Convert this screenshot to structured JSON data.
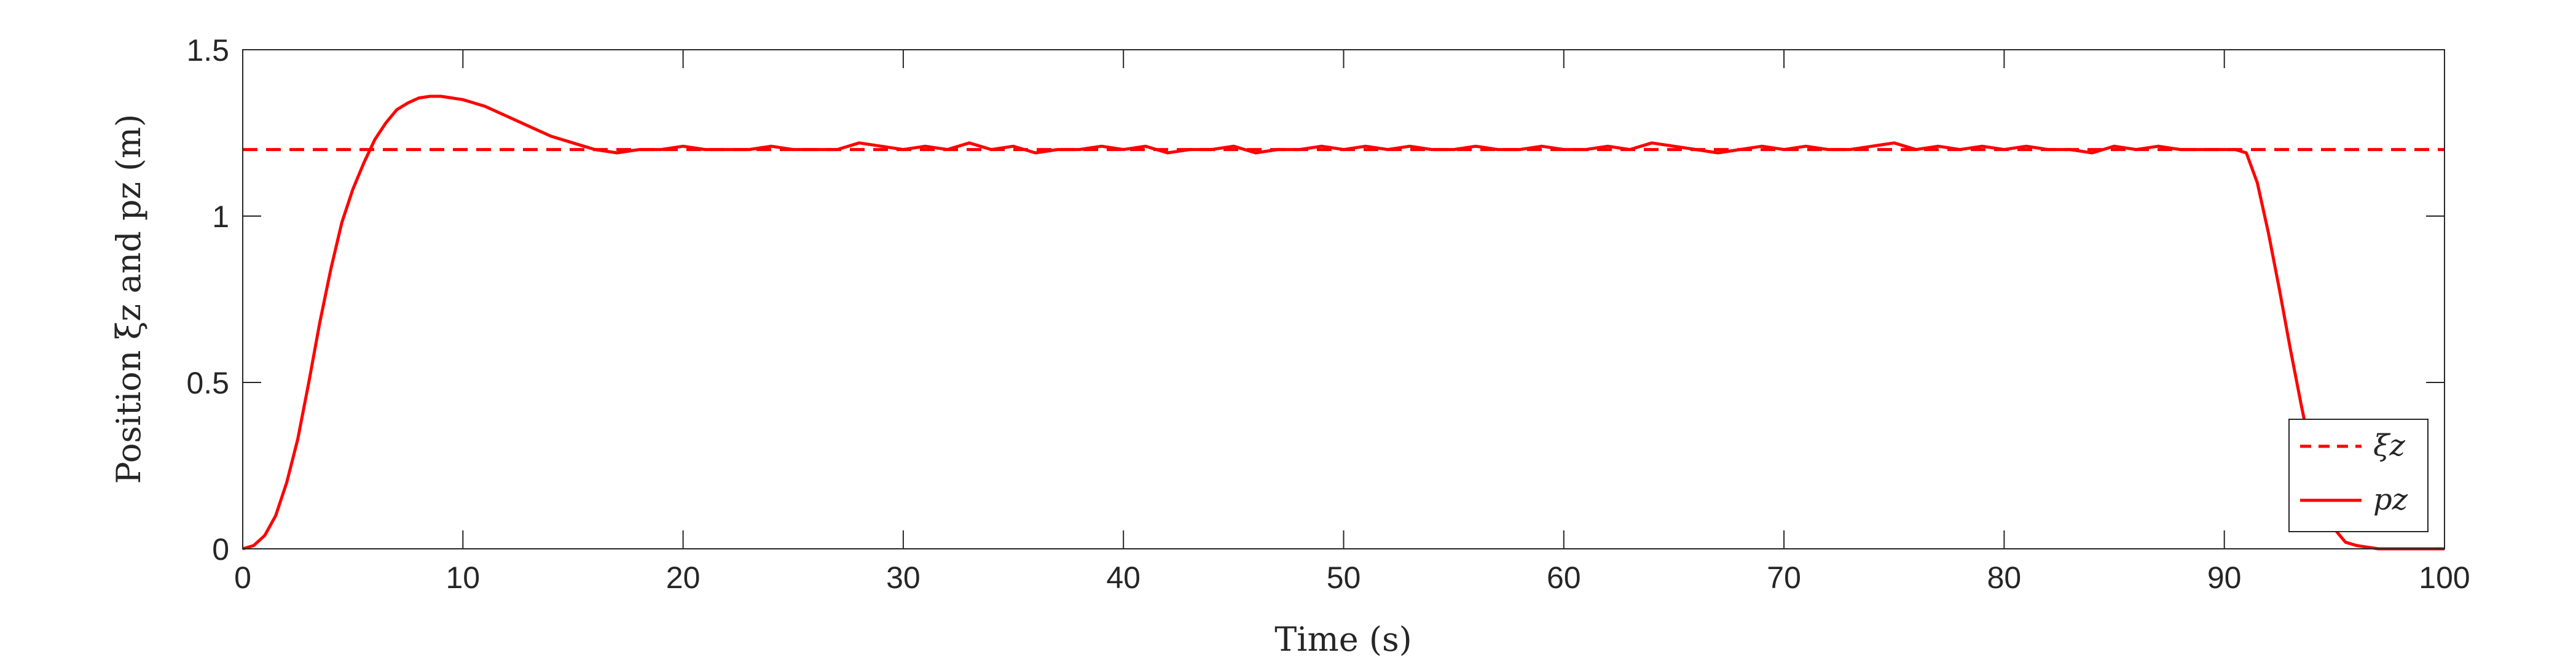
{
  "chart_data": {
    "type": "line",
    "title": "",
    "xlabel": "Time (s)",
    "ylabel": "Position ξz and pz (m)",
    "xlim": [
      0,
      100
    ],
    "ylim": [
      0,
      1.5
    ],
    "x_ticks": [
      0,
      10,
      20,
      30,
      40,
      50,
      60,
      70,
      80,
      90,
      100
    ],
    "y_ticks": [
      0,
      0.5,
      1,
      1.5
    ],
    "x_tick_labels": [
      "0",
      "10",
      "20",
      "30",
      "40",
      "50",
      "60",
      "70",
      "80",
      "90",
      "100"
    ],
    "y_tick_labels": [
      "0",
      "0.5",
      "1",
      "1.5"
    ],
    "grid": false,
    "legend_position": "bottom-right",
    "series": [
      {
        "name": "ξz",
        "style": "dashed",
        "color": "#ff0000",
        "x": [
          0,
          100
        ],
        "y": [
          1.2,
          1.2
        ]
      },
      {
        "name": "pz",
        "style": "solid",
        "color": "#ff0000",
        "x": [
          0,
          0.5,
          1,
          1.5,
          2,
          2.5,
          3,
          3.5,
          4,
          4.5,
          5,
          5.5,
          6,
          6.5,
          7,
          7.5,
          8,
          8.5,
          9,
          9.5,
          10,
          11,
          12,
          13,
          14,
          15,
          16,
          17,
          18,
          19,
          20,
          21,
          22,
          23,
          24,
          25,
          26,
          27,
          28,
          29,
          30,
          31,
          32,
          33,
          34,
          35,
          36,
          37,
          38,
          39,
          40,
          41,
          42,
          43,
          44,
          45,
          46,
          47,
          48,
          49,
          50,
          51,
          52,
          53,
          54,
          55,
          56,
          57,
          58,
          59,
          60,
          61,
          62,
          63,
          64,
          65,
          66,
          67,
          68,
          69,
          70,
          71,
          72,
          73,
          74,
          75,
          76,
          77,
          78,
          79,
          80,
          81,
          82,
          83,
          84,
          85,
          86,
          87,
          88,
          89,
          90,
          90.5,
          91,
          91.5,
          92,
          92.5,
          93,
          93.5,
          94,
          94.5,
          95,
          95.5,
          96,
          96.5,
          97,
          97.5,
          98,
          99,
          100
        ],
        "y": [
          0,
          0.01,
          0.04,
          0.1,
          0.2,
          0.33,
          0.5,
          0.68,
          0.84,
          0.98,
          1.08,
          1.16,
          1.23,
          1.28,
          1.32,
          1.34,
          1.355,
          1.36,
          1.36,
          1.355,
          1.35,
          1.33,
          1.3,
          1.27,
          1.24,
          1.22,
          1.2,
          1.19,
          1.2,
          1.2,
          1.21,
          1.2,
          1.2,
          1.2,
          1.21,
          1.2,
          1.2,
          1.2,
          1.22,
          1.21,
          1.2,
          1.21,
          1.2,
          1.22,
          1.2,
          1.21,
          1.19,
          1.2,
          1.2,
          1.21,
          1.2,
          1.21,
          1.19,
          1.2,
          1.2,
          1.21,
          1.19,
          1.2,
          1.2,
          1.21,
          1.2,
          1.21,
          1.2,
          1.21,
          1.2,
          1.2,
          1.21,
          1.2,
          1.2,
          1.21,
          1.2,
          1.2,
          1.21,
          1.2,
          1.22,
          1.21,
          1.2,
          1.19,
          1.2,
          1.21,
          1.2,
          1.21,
          1.2,
          1.2,
          1.21,
          1.22,
          1.2,
          1.21,
          1.2,
          1.21,
          1.2,
          1.21,
          1.2,
          1.2,
          1.19,
          1.21,
          1.2,
          1.21,
          1.2,
          1.2,
          1.2,
          1.2,
          1.19,
          1.1,
          0.95,
          0.78,
          0.6,
          0.43,
          0.27,
          0.14,
          0.06,
          0.02,
          0.01,
          0.005,
          0,
          0,
          0,
          0,
          0
        ]
      }
    ]
  }
}
